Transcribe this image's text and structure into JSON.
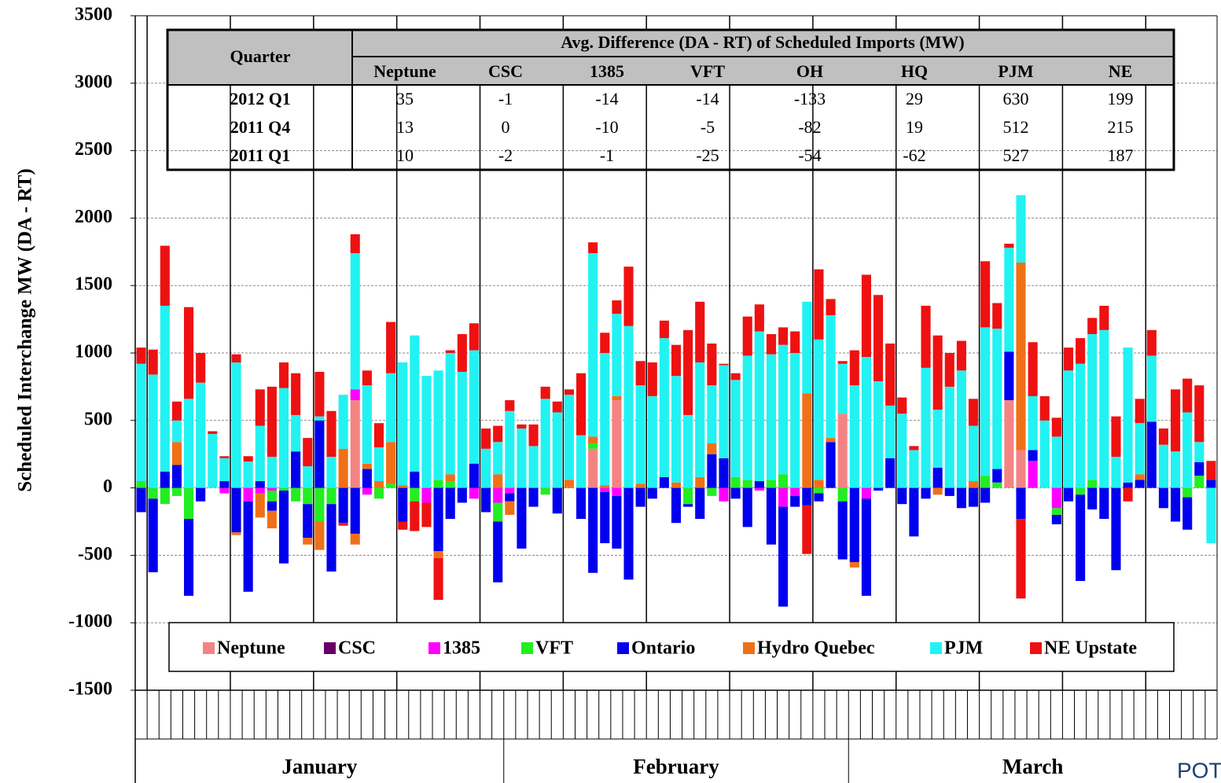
{
  "chart_data": {
    "type": "stacked_bar",
    "y_label": "Scheduled Interchange MW (DA - RT)",
    "month_labels": [
      "January",
      "February",
      "March"
    ],
    "watermark": "POTOMAC",
    "ylim": [
      -1500,
      3500
    ],
    "yticks": [
      -1500,
      -1000,
      -500,
      0,
      500,
      1000,
      1500,
      2000,
      2500,
      3000,
      3500
    ],
    "grid": true,
    "legend": "bottom",
    "categories": [
      null,
      null,
      null,
      null,
      null,
      null,
      null,
      null,
      null,
      null,
      null,
      null,
      null,
      null,
      null,
      null,
      null,
      null,
      null,
      null,
      null,
      null,
      null,
      null,
      null,
      null,
      null,
      null,
      null,
      null,
      null,
      null,
      null,
      null,
      null,
      null,
      null,
      null,
      null,
      null,
      null,
      null,
      null,
      null,
      null,
      null,
      null,
      null,
      null,
      null,
      null,
      null,
      null,
      null,
      null,
      null,
      null,
      null,
      null,
      null,
      null,
      null,
      null,
      null,
      null,
      null,
      null,
      null,
      null,
      null,
      null,
      null,
      null,
      null,
      null,
      null,
      null,
      null,
      null,
      null,
      null,
      null,
      null,
      null,
      null,
      null,
      null,
      null,
      null,
      null,
      null
    ],
    "series": [
      {
        "name": "Neptune",
        "color": "#f48484",
        "values": [
          0,
          0,
          0,
          0,
          0,
          0,
          0,
          0,
          0,
          0,
          0,
          0,
          0,
          0,
          0,
          0,
          0,
          0,
          650,
          0,
          0,
          0,
          0,
          0,
          0,
          0,
          0,
          0,
          0,
          0,
          0,
          0,
          0,
          0,
          0,
          0,
          0,
          0,
          290,
          0,
          650,
          0,
          0,
          0,
          0,
          0,
          0,
          0,
          0,
          0,
          0,
          0,
          0,
          0,
          0,
          0,
          0,
          0,
          0,
          550,
          0,
          0,
          0,
          0,
          0,
          0,
          0,
          0,
          0,
          0,
          0,
          0,
          0,
          650,
          280,
          0,
          0,
          0,
          0,
          0,
          0,
          0,
          0,
          0,
          0,
          0,
          0,
          0,
          0,
          0,
          0
        ]
      },
      {
        "name": "CSC",
        "color": "#660066",
        "values": [
          0,
          0,
          0,
          0,
          0,
          0,
          0,
          0,
          0,
          0,
          0,
          0,
          0,
          0,
          0,
          0,
          0,
          0,
          0,
          0,
          0,
          0,
          0,
          0,
          0,
          0,
          0,
          0,
          0,
          0,
          0,
          0,
          0,
          0,
          0,
          0,
          0,
          0,
          0,
          0,
          0,
          0,
          0,
          0,
          0,
          0,
          0,
          0,
          0,
          0,
          0,
          0,
          0,
          0,
          0,
          0,
          0,
          0,
          0,
          0,
          0,
          0,
          0,
          0,
          0,
          0,
          0,
          0,
          0,
          0,
          0,
          0,
          0,
          0,
          0,
          0,
          0,
          0,
          0,
          0,
          0,
          0,
          0,
          0,
          0,
          0,
          0,
          0,
          0,
          0,
          0
        ]
      },
      {
        "name": "1385",
        "color": "#ff00ff",
        "values": [
          0,
          0,
          0,
          0,
          0,
          0,
          0,
          -40,
          0,
          -100,
          -40,
          -20,
          0,
          0,
          0,
          0,
          0,
          0,
          80,
          -50,
          0,
          0,
          0,
          0,
          -110,
          0,
          0,
          0,
          -80,
          0,
          -110,
          -40,
          0,
          0,
          0,
          0,
          0,
          0,
          0,
          -30,
          -60,
          0,
          0,
          0,
          0,
          0,
          0,
          0,
          0,
          -100,
          0,
          0,
          -20,
          0,
          -140,
          -60,
          0,
          0,
          0,
          0,
          0,
          -80,
          0,
          0,
          0,
          0,
          0,
          0,
          0,
          0,
          0,
          0,
          0,
          0,
          0,
          200,
          0,
          -150,
          0,
          0,
          0,
          0,
          0,
          0,
          0,
          0,
          0,
          0,
          0,
          0,
          0
        ]
      },
      {
        "name": "VFT",
        "color": "#22ee22",
        "values": [
          50,
          -80,
          -120,
          -60,
          -230,
          0,
          0,
          0,
          0,
          0,
          0,
          -80,
          -20,
          -100,
          -120,
          -250,
          -120,
          0,
          0,
          0,
          -80,
          30,
          0,
          -100,
          0,
          60,
          50,
          0,
          0,
          0,
          -140,
          0,
          0,
          0,
          -50,
          0,
          0,
          0,
          40,
          0,
          0,
          0,
          0,
          0,
          0,
          0,
          -120,
          0,
          -60,
          0,
          80,
          60,
          0,
          60,
          100,
          0,
          0,
          -40,
          0,
          -100,
          0,
          0,
          0,
          0,
          0,
          0,
          0,
          0,
          0,
          0,
          0,
          90,
          40,
          0,
          0,
          0,
          0,
          -50,
          0,
          -50,
          60,
          0,
          0,
          0,
          0,
          0,
          0,
          0,
          -70,
          90,
          0
        ]
      },
      {
        "name": "Ontario",
        "color": "#0000ee",
        "values": [
          -180,
          -545,
          120,
          170,
          -570,
          -100,
          0,
          50,
          -330,
          -670,
          50,
          -70,
          -540,
          270,
          -250,
          500,
          -500,
          -260,
          -340,
          140,
          0,
          0,
          -250,
          120,
          0,
          -470,
          -230,
          -110,
          180,
          -180,
          -450,
          -60,
          -450,
          -140,
          0,
          -190,
          0,
          -230,
          -630,
          -380,
          -390,
          -680,
          -140,
          -80,
          80,
          -260,
          -20,
          -230,
          250,
          220,
          -80,
          -290,
          50,
          -420,
          -740,
          -80,
          -130,
          -60,
          340,
          -430,
          -550,
          -720,
          -20,
          220,
          -120,
          -360,
          -80,
          150,
          -60,
          -150,
          -140,
          -110,
          100,
          360,
          -230,
          80,
          0,
          -70,
          -100,
          -640,
          -160,
          -230,
          -610,
          40,
          60,
          490,
          -150,
          -250,
          -240,
          100,
          60
        ]
      },
      {
        "name": "Hydro Quebec",
        "color": "#f07018",
        "values": [
          0,
          0,
          0,
          170,
          0,
          0,
          0,
          0,
          -20,
          0,
          -180,
          -130,
          0,
          0,
          -50,
          -210,
          0,
          290,
          -80,
          40,
          50,
          310,
          20,
          0,
          0,
          -50,
          50,
          0,
          0,
          0,
          100,
          -100,
          0,
          0,
          0,
          0,
          60,
          0,
          50,
          20,
          30,
          0,
          30,
          0,
          0,
          40,
          0,
          80,
          80,
          0,
          0,
          0,
          0,
          0,
          0,
          0,
          700,
          60,
          30,
          0,
          -40,
          0,
          0,
          0,
          0,
          0,
          0,
          -50,
          0,
          0,
          50,
          0,
          0,
          0,
          1390,
          0,
          0,
          0,
          0,
          0,
          0,
          0,
          0,
          0,
          40,
          0,
          0,
          0,
          0,
          0,
          0
        ]
      },
      {
        "name": "PJM",
        "color": "#22f2f2",
        "values": [
          870,
          840,
          1230,
          160,
          660,
          780,
          400,
          170,
          930,
          195,
          410,
          230,
          740,
          270,
          160,
          30,
          230,
          400,
          1010,
          580,
          250,
          510,
          910,
          1010,
          830,
          810,
          900,
          860,
          840,
          290,
          240,
          570,
          440,
          310,
          660,
          560,
          630,
          390,
          1360,
          980,
          610,
          1200,
          730,
          680,
          1030,
          790,
          540,
          850,
          430,
          690,
          720,
          920,
          1110,
          930,
          960,
          1000,
          680,
          1040,
          910,
          370,
          760,
          970,
          790,
          390,
          550,
          280,
          890,
          430,
          750,
          870,
          410,
          1100,
          1040,
          770,
          500,
          400,
          500,
          380,
          870,
          920,
          1080,
          1170,
          230,
          1000,
          380,
          490,
          320,
          270,
          560,
          150,
          -410
        ]
      },
      {
        "name": "NE Upstate",
        "color": "#ee1111",
        "values": [
          120,
          185,
          445,
          140,
          680,
          220,
          20,
          15,
          60,
          40,
          270,
          520,
          190,
          310,
          210,
          330,
          340,
          -20,
          140,
          110,
          180,
          380,
          -60,
          -220,
          -180,
          -310,
          20,
          280,
          200,
          150,
          120,
          80,
          30,
          160,
          90,
          80,
          40,
          460,
          80,
          150,
          100,
          440,
          180,
          250,
          130,
          230,
          630,
          450,
          310,
          10,
          50,
          290,
          200,
          150,
          130,
          160,
          -360,
          520,
          120,
          20,
          260,
          610,
          640,
          460,
          120,
          30,
          460,
          550,
          250,
          220,
          200,
          490,
          190,
          30,
          -590,
          400,
          180,
          140,
          170,
          190,
          120,
          180,
          300,
          -100,
          180,
          190,
          120,
          460,
          250,
          420,
          140
        ]
      }
    ],
    "table": {
      "title": "Avg. Difference (DA - RT) of Scheduled Imports (MW)",
      "corner": "Quarter",
      "header": [
        "Neptune",
        "CSC",
        "1385",
        "VFT",
        "OH",
        "HQ",
        "PJM",
        "NE"
      ],
      "rows": [
        [
          "2012 Q1",
          "35",
          "-1",
          "-14",
          "-14",
          "-133",
          "29",
          "630",
          "199"
        ],
        [
          "2011 Q4",
          "13",
          "0",
          "-10",
          "-5",
          "-82",
          "19",
          "512",
          "215"
        ],
        [
          "2011 Q1",
          "10",
          "-2",
          "-1",
          "-25",
          "-54",
          "-62",
          "527",
          "187"
        ]
      ]
    }
  }
}
